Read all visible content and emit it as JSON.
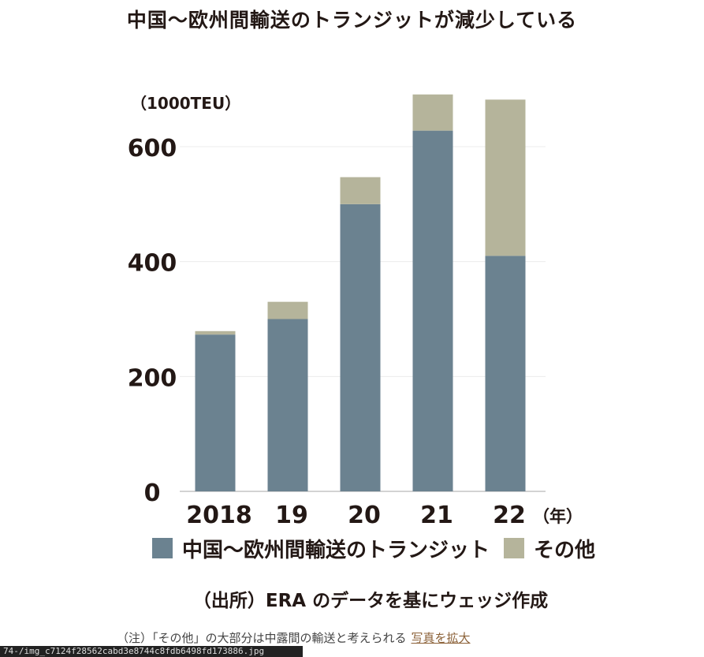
{
  "title": "中国～欧州間輸送のトランジットが減少している",
  "chart_data": {
    "type": "bar",
    "stacked": true,
    "title": "中国～欧州間輸送のトランジットが減少している",
    "unit_label": "（1000TEU）",
    "xunit_label": "（年）",
    "categories": [
      "2018",
      "19",
      "20",
      "21",
      "22"
    ],
    "series": [
      {
        "name": "中国～欧州間輸送のトランジット",
        "values": [
          273,
          300,
          500,
          628,
          410
        ],
        "color": "#6b8290"
      },
      {
        "name": "その他",
        "values": [
          6,
          30,
          47,
          63,
          272
        ],
        "color": "#b5b49b"
      }
    ],
    "yticks": [
      0,
      200,
      400,
      600
    ],
    "ylim": [
      0,
      700
    ],
    "grid": true,
    "legend": "bottom"
  },
  "legend": [
    "中国～欧州間輸送のトランジット",
    "その他"
  ],
  "source": "（出所）ERA のデータを基にウェッジ作成",
  "note": {
    "text": "（注）「その他」の大部分は中露間の輸送と考えられる",
    "link": "写真を拡大"
  },
  "statusbar": "74-/img_c7124f28562cabd3e8744c8fdb6498fd173886.jpg"
}
